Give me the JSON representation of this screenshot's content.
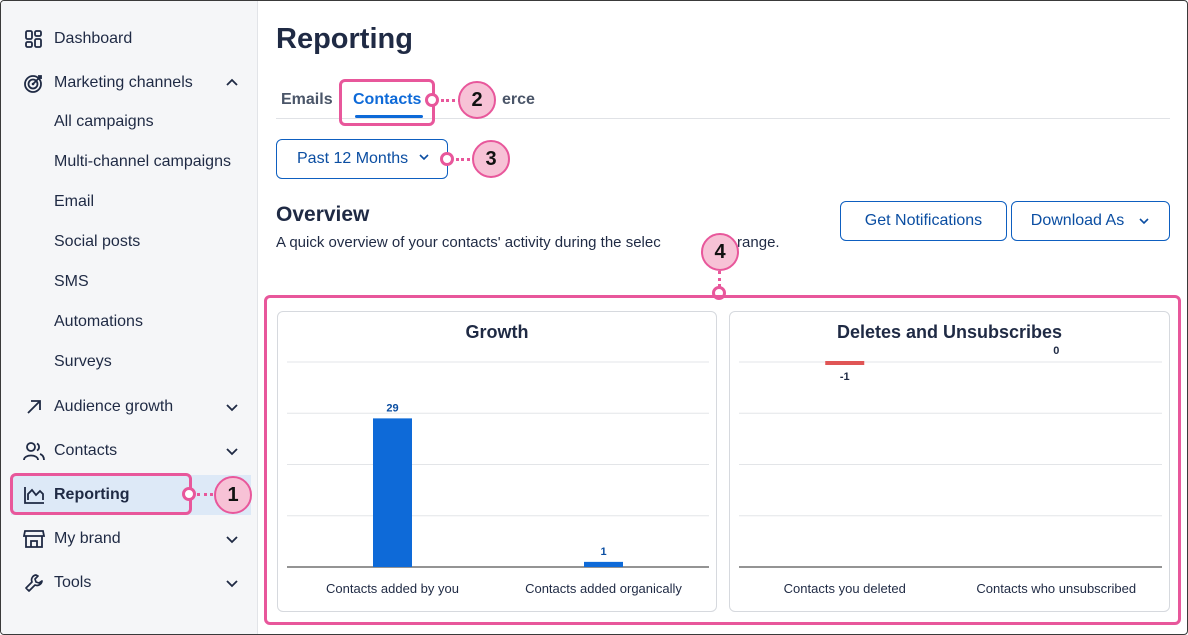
{
  "sidebar": {
    "dashboard": "Dashboard",
    "marketing_channels": "Marketing channels",
    "sub_items": [
      "All campaigns",
      "Multi-channel campaigns",
      "Email",
      "Social posts",
      "SMS",
      "Automations",
      "Surveys"
    ],
    "audience_growth": "Audience growth",
    "contacts": "Contacts",
    "reporting": "Reporting",
    "my_brand": "My brand",
    "tools": "Tools"
  },
  "main": {
    "title": "Reporting",
    "tabs": [
      "Emails",
      "Contacts",
      "erce"
    ],
    "active_tab": "Contacts",
    "date_range": "Past 12 Months",
    "overview_title": "Overview",
    "overview_subtitle": "A quick overview of your contacts' activity during the selec",
    "overview_subtitle_tail": "ime range.",
    "get_notifications": "Get Notifications",
    "download_as": "Download As"
  },
  "callouts": [
    "1",
    "2",
    "3",
    "4"
  ],
  "colors": {
    "accent": "#0e6ad8",
    "callout_pink": "#e8579b",
    "negative_bar": "#e05555"
  },
  "chart_data": [
    {
      "type": "bar",
      "title": "Growth",
      "categories": [
        "Contacts added by you",
        "Contacts added organically"
      ],
      "values": [
        29,
        1
      ],
      "ylim": [
        0,
        40
      ],
      "grid": true
    },
    {
      "type": "bar",
      "title": "Deletes and Unsubscribes",
      "categories": [
        "Contacts you deleted",
        "Contacts who unsubscribed"
      ],
      "values": [
        -1,
        0
      ],
      "ylim": [
        -20,
        0
      ],
      "grid": true
    }
  ]
}
